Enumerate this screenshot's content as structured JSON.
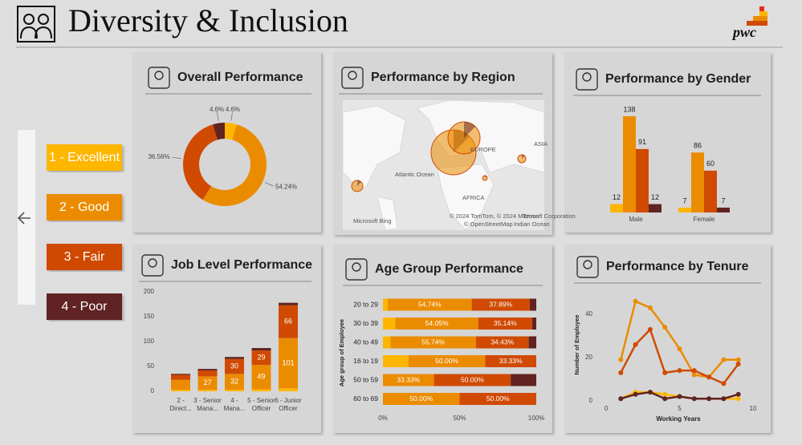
{
  "header": {
    "title": "Diversity & Inclusion",
    "logo": "pwc"
  },
  "chart_data": [
    {
      "type": "pie",
      "title": "Overall Performance",
      "donut": true,
      "categories": [
        "1 - Excellent",
        "2 - Good",
        "3 - Fair",
        "4 - Poor"
      ],
      "values": [
        4.6,
        54.24,
        36.56,
        4.6
      ],
      "value_labels": [
        "4.6%",
        "54.24%",
        "36.56%",
        "4.6%"
      ],
      "colors": [
        "#FFB600",
        "#EB8C00",
        "#D04A02",
        "#602320"
      ]
    },
    {
      "type": "map",
      "title": "Performance by Region",
      "annotations": [
        "Atlantic Ocean",
        "EUROPE",
        "AFRICA",
        "ASIA",
        "Microsoft Bing",
        "© 2024 TomTom, © 2024 Microsoft Corporation",
        "Terms",
        "© OpenStreetMap",
        "Indian Ocean"
      ]
    },
    {
      "type": "grouped_bar",
      "title": "Performance by Gender",
      "categories": [
        "Male",
        "Female"
      ],
      "series": [
        {
          "color": "#FFB600",
          "values": [
            12,
            7
          ]
        },
        {
          "color": "#EB8C00",
          "values": [
            138,
            86
          ]
        },
        {
          "color": "#D04A02",
          "values": [
            91,
            60
          ]
        },
        {
          "color": "#602320",
          "values": [
            12,
            7
          ]
        }
      ]
    },
    {
      "type": "stacked_bar",
      "title": "Job Level Performance",
      "categories": [
        "2 - Direct...",
        "3 - Senior Mana...",
        "4 - Mana...",
        "5 - Senior Officer",
        "6 - Junior Officer"
      ],
      "ylim": [
        0,
        200
      ],
      "yticks": [
        0,
        50,
        100,
        150,
        200
      ],
      "series": [
        {
          "color": "#FFB600",
          "values": [
            3,
            3,
            3,
            4,
            6
          ]
        },
        {
          "color": "#EB8C00",
          "values": [
            20,
            27,
            32,
            49,
            101
          ]
        },
        {
          "color": "#D04A02",
          "values": [
            10,
            12,
            30,
            29,
            66
          ]
        },
        {
          "color": "#602320",
          "values": [
            2,
            3,
            4,
            5,
            5
          ]
        }
      ]
    },
    {
      "type": "stacked_barh",
      "title": "Age Group Performance",
      "y_label": "Age group of Employee",
      "categories": [
        "20 to 29",
        "30 to 39",
        "40 to 49",
        "16 to 19",
        "50 to 59",
        "60 to 69"
      ],
      "xlim": [
        0,
        100
      ],
      "xticks": [
        {
          "value": 0,
          "label": "0%"
        },
        {
          "value": 50,
          "label": "50%"
        },
        {
          "value": 100,
          "label": "100%"
        }
      ],
      "series": [
        {
          "color": "#FFB600",
          "values": [
            3.16,
            8.11,
            4.92,
            16.67,
            0,
            0
          ]
        },
        {
          "color": "#EB8C00",
          "values": [
            54.74,
            54.05,
            55.74,
            50.0,
            33.33,
            50.0
          ],
          "value_labels": [
            "54.74%",
            "54.05%",
            "55.74%",
            "50.00%",
            "33.33%",
            "50.00%"
          ]
        },
        {
          "color": "#D04A02",
          "values": [
            37.89,
            35.14,
            34.43,
            33.33,
            50.0,
            50.0
          ],
          "value_labels": [
            "37.89%",
            "35.14%",
            "34.43%",
            "33.33%",
            "50.00%",
            "50.00%"
          ]
        },
        {
          "color": "#602320",
          "values": [
            4.21,
            2.7,
            4.92,
            0,
            16.67,
            0
          ]
        }
      ]
    },
    {
      "type": "line",
      "title": "Performance by Tenure",
      "x_label": "Working Years",
      "y_label": "Number of Employee",
      "x": [
        1,
        2,
        3,
        4,
        5,
        6,
        7,
        8,
        9
      ],
      "xlim": [
        -0.5,
        10.5
      ],
      "xticks": [
        0,
        5,
        10
      ],
      "ylim": [
        -3,
        50
      ],
      "yticks": [
        0,
        20,
        40
      ],
      "series": [
        {
          "color": "#FFB600",
          "values": [
            1,
            4,
            4,
            3,
            2,
            1,
            1,
            1,
            1
          ]
        },
        {
          "color": "#EB8C00",
          "values": [
            19,
            46,
            43,
            34,
            24,
            12,
            11,
            19,
            19
          ]
        },
        {
          "color": "#D04A02",
          "values": [
            13,
            26,
            33,
            13,
            14,
            14,
            11,
            8,
            17
          ]
        },
        {
          "color": "#602320",
          "values": [
            1,
            3,
            4,
            1,
            2,
            1,
            1,
            1,
            3
          ]
        }
      ]
    }
  ]
}
